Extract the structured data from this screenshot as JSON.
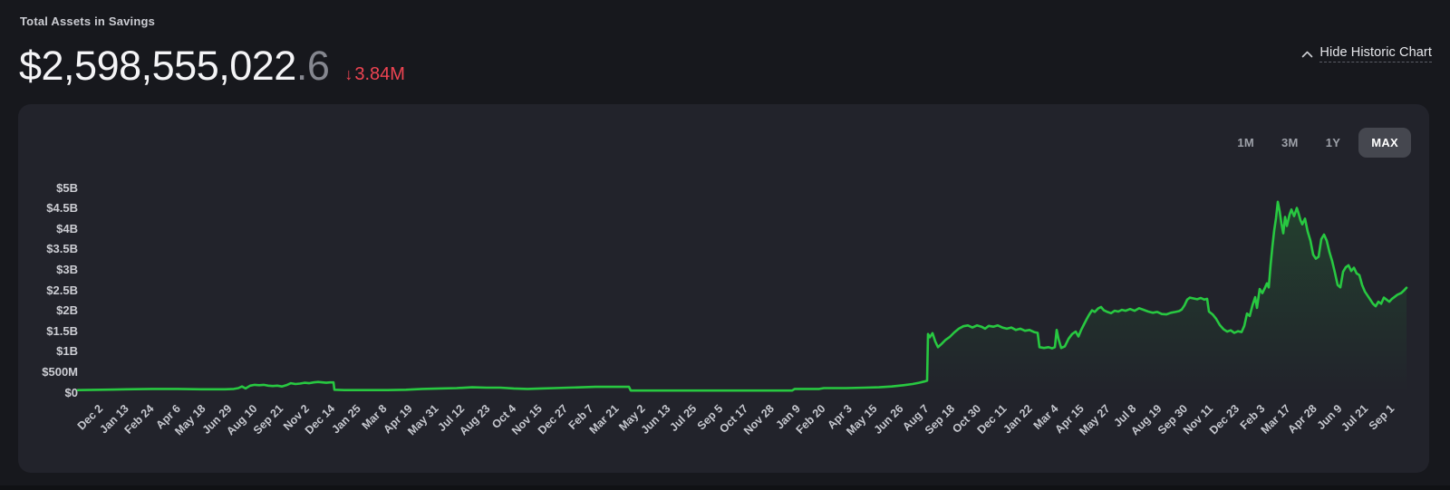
{
  "header": {
    "title": "Total Assets in Savings",
    "amount_main": "$2,598,555,022",
    "amount_decimal": ".6",
    "change": {
      "arrow": "↓",
      "value": "3.84M",
      "color": "#ef4452"
    },
    "toggle_link": {
      "label": "Hide Historic Chart",
      "icon": "chevron-up"
    }
  },
  "chart_panel": {
    "range_buttons": [
      {
        "label": "1M",
        "active": false
      },
      {
        "label": "3M",
        "active": false
      },
      {
        "label": "1Y",
        "active": false
      },
      {
        "label": "MAX",
        "active": true
      }
    ]
  },
  "chart_data": {
    "type": "line",
    "unit": "USD",
    "grid": false,
    "legend": false,
    "ylim": [
      0,
      5.5
    ],
    "y_axis": [
      {
        "label": "$5B",
        "value": 5
      },
      {
        "label": "$4.5B",
        "value": 4.5
      },
      {
        "label": "$4B",
        "value": 4
      },
      {
        "label": "$3.5B",
        "value": 3.5
      },
      {
        "label": "$3B",
        "value": 3
      },
      {
        "label": "$2.5B",
        "value": 2.5
      },
      {
        "label": "$2B",
        "value": 2
      },
      {
        "label": "$1.5B",
        "value": 1.5
      },
      {
        "label": "$1B",
        "value": 1
      },
      {
        "label": "$500M",
        "value": 0.5
      },
      {
        "label": "$0",
        "value": 0
      }
    ],
    "x_labels": [
      "Dec 2",
      "Jan 13",
      "Feb 24",
      "Apr 6",
      "May 18",
      "Jun 29",
      "Aug 10",
      "Sep 21",
      "Nov 2",
      "Dec 14",
      "Jan 25",
      "Mar 8",
      "Apr 19",
      "May 31",
      "Jul 12",
      "Aug 23",
      "Oct 4",
      "Nov 15",
      "Dec 27",
      "Feb 7",
      "Mar 21",
      "May 2",
      "Jun 13",
      "Jul 25",
      "Sep 5",
      "Oct 17",
      "Nov 28",
      "Jan 9",
      "Feb 20",
      "Apr 3",
      "May 15",
      "Jun 26",
      "Aug 7",
      "Sep 18",
      "Oct 30",
      "Dec 11",
      "Jan 22",
      "Mar 4",
      "Apr 15",
      "May 27",
      "Jul 8",
      "Aug 19",
      "Sep 30",
      "Nov 11",
      "Dec 23",
      "Feb 3",
      "Mar 17",
      "Apr 28",
      "Jun 9",
      "Jul 21",
      "Sep 1"
    ],
    "series": [
      {
        "name": "total-assets-historic",
        "color": "#28c841",
        "value_unit": "billions USD",
        "points": [
          [
            86,
            0.05
          ],
          [
            112,
            0.06
          ],
          [
            140,
            0.07
          ],
          [
            168,
            0.08
          ],
          [
            196,
            0.08
          ],
          [
            222,
            0.07
          ],
          [
            248,
            0.07
          ],
          [
            258,
            0.08
          ],
          [
            263,
            0.1
          ],
          [
            267,
            0.14
          ],
          [
            271,
            0.09
          ],
          [
            276,
            0.16
          ],
          [
            281,
            0.18
          ],
          [
            286,
            0.17
          ],
          [
            291,
            0.18
          ],
          [
            296,
            0.16
          ],
          [
            301,
            0.15
          ],
          [
            306,
            0.16
          ],
          [
            311,
            0.14
          ],
          [
            316,
            0.17
          ],
          [
            321,
            0.22
          ],
          [
            326,
            0.2
          ],
          [
            331,
            0.21
          ],
          [
            336,
            0.23
          ],
          [
            341,
            0.22
          ],
          [
            346,
            0.24
          ],
          [
            351,
            0.25
          ],
          [
            356,
            0.24
          ],
          [
            360,
            0.23
          ],
          [
            364,
            0.24
          ],
          [
            368,
            0.24
          ],
          [
            369,
            0.06
          ],
          [
            380,
            0.05
          ],
          [
            405,
            0.05
          ],
          [
            428,
            0.05
          ],
          [
            448,
            0.06
          ],
          [
            466,
            0.08
          ],
          [
            485,
            0.09
          ],
          [
            504,
            0.1
          ],
          [
            521,
            0.12
          ],
          [
            537,
            0.11
          ],
          [
            552,
            0.11
          ],
          [
            567,
            0.09
          ],
          [
            582,
            0.08
          ],
          [
            597,
            0.09
          ],
          [
            612,
            0.1
          ],
          [
            627,
            0.11
          ],
          [
            642,
            0.12
          ],
          [
            657,
            0.13
          ],
          [
            672,
            0.13
          ],
          [
            686,
            0.13
          ],
          [
            694,
            0.13
          ],
          [
            696,
            0.04
          ],
          [
            720,
            0.04
          ],
          [
            752,
            0.04
          ],
          [
            784,
            0.04
          ],
          [
            816,
            0.04
          ],
          [
            848,
            0.04
          ],
          [
            874,
            0.04
          ],
          [
            877,
            0.08
          ],
          [
            904,
            0.08
          ],
          [
            909,
            0.1
          ],
          [
            934,
            0.1
          ],
          [
            954,
            0.11
          ],
          [
            970,
            0.12
          ],
          [
            984,
            0.14
          ],
          [
            997,
            0.17
          ],
          [
            1007,
            0.2
          ],
          [
            1014,
            0.23
          ],
          [
            1020,
            0.26
          ],
          [
            1023,
            0.28
          ],
          [
            1024,
            1.42
          ],
          [
            1026,
            1.34
          ],
          [
            1029,
            1.44
          ],
          [
            1032,
            1.24
          ],
          [
            1035,
            1.1
          ],
          [
            1039,
            1.18
          ],
          [
            1043,
            1.27
          ],
          [
            1048,
            1.35
          ],
          [
            1053,
            1.46
          ],
          [
            1058,
            1.55
          ],
          [
            1063,
            1.61
          ],
          [
            1068,
            1.63
          ],
          [
            1073,
            1.58
          ],
          [
            1078,
            1.63
          ],
          [
            1083,
            1.6
          ],
          [
            1087,
            1.55
          ],
          [
            1091,
            1.62
          ],
          [
            1096,
            1.6
          ],
          [
            1101,
            1.63
          ],
          [
            1106,
            1.58
          ],
          [
            1111,
            1.55
          ],
          [
            1116,
            1.58
          ],
          [
            1121,
            1.52
          ],
          [
            1126,
            1.55
          ],
          [
            1131,
            1.5
          ],
          [
            1136,
            1.52
          ],
          [
            1141,
            1.47
          ],
          [
            1145,
            1.45
          ],
          [
            1147,
            1.1
          ],
          [
            1152,
            1.08
          ],
          [
            1157,
            1.1
          ],
          [
            1161,
            1.07
          ],
          [
            1164,
            1.1
          ],
          [
            1166,
            1.52
          ],
          [
            1168,
            1.3
          ],
          [
            1171,
            1.08
          ],
          [
            1175,
            1.12
          ],
          [
            1179,
            1.3
          ],
          [
            1183,
            1.42
          ],
          [
            1187,
            1.48
          ],
          [
            1190,
            1.36
          ],
          [
            1193,
            1.52
          ],
          [
            1196,
            1.65
          ],
          [
            1199,
            1.78
          ],
          [
            1202,
            1.9
          ],
          [
            1205,
            2.0
          ],
          [
            1208,
            1.96
          ],
          [
            1212,
            2.05
          ],
          [
            1215,
            2.08
          ],
          [
            1218,
            2.0
          ],
          [
            1222,
            1.96
          ],
          [
            1226,
            1.93
          ],
          [
            1230,
            1.99
          ],
          [
            1234,
            1.97
          ],
          [
            1238,
            2.01
          ],
          [
            1242,
            1.99
          ],
          [
            1247,
            2.03
          ],
          [
            1252,
            1.99
          ],
          [
            1257,
            2.05
          ],
          [
            1262,
            2.01
          ],
          [
            1267,
            1.97
          ],
          [
            1272,
            1.94
          ],
          [
            1277,
            1.96
          ],
          [
            1282,
            1.91
          ],
          [
            1287,
            1.9
          ],
          [
            1292,
            1.94
          ],
          [
            1297,
            1.96
          ],
          [
            1301,
            1.98
          ],
          [
            1304,
            2.02
          ],
          [
            1307,
            2.12
          ],
          [
            1310,
            2.26
          ],
          [
            1313,
            2.31
          ],
          [
            1317,
            2.29
          ],
          [
            1321,
            2.27
          ],
          [
            1325,
            2.3
          ],
          [
            1329,
            2.26
          ],
          [
            1332,
            2.28
          ],
          [
            1334,
            1.97
          ],
          [
            1338,
            1.9
          ],
          [
            1342,
            1.79
          ],
          [
            1346,
            1.64
          ],
          [
            1350,
            1.54
          ],
          [
            1354,
            1.48
          ],
          [
            1358,
            1.51
          ],
          [
            1362,
            1.45
          ],
          [
            1366,
            1.49
          ],
          [
            1370,
            1.47
          ],
          [
            1373,
            1.62
          ],
          [
            1376,
            1.92
          ],
          [
            1379,
            1.86
          ],
          [
            1382,
            2.12
          ],
          [
            1385,
            2.32
          ],
          [
            1387,
            2.06
          ],
          [
            1390,
            2.52
          ],
          [
            1393,
            2.42
          ],
          [
            1396,
            2.56
          ],
          [
            1398,
            2.66
          ],
          [
            1400,
            2.56
          ],
          [
            1402,
            3.1
          ],
          [
            1404,
            3.55
          ],
          [
            1406,
            3.95
          ],
          [
            1408,
            4.25
          ],
          [
            1410,
            4.65
          ],
          [
            1412,
            4.42
          ],
          [
            1414,
            4.12
          ],
          [
            1416,
            3.88
          ],
          [
            1418,
            4.28
          ],
          [
            1420,
            4.06
          ],
          [
            1423,
            4.34
          ],
          [
            1425,
            4.46
          ],
          [
            1428,
            4.3
          ],
          [
            1431,
            4.5
          ],
          [
            1433,
            4.36
          ],
          [
            1435,
            4.2
          ],
          [
            1437,
            4.1
          ],
          [
            1440,
            4.24
          ],
          [
            1443,
            3.92
          ],
          [
            1446,
            3.7
          ],
          [
            1449,
            3.36
          ],
          [
            1452,
            3.26
          ],
          [
            1455,
            3.31
          ],
          [
            1458,
            3.74
          ],
          [
            1461,
            3.85
          ],
          [
            1464,
            3.7
          ],
          [
            1467,
            3.42
          ],
          [
            1470,
            3.2
          ],
          [
            1473,
            2.92
          ],
          [
            1476,
            2.62
          ],
          [
            1479,
            2.56
          ],
          [
            1482,
            2.94
          ],
          [
            1485,
            3.05
          ],
          [
            1488,
            3.1
          ],
          [
            1491,
            2.96
          ],
          [
            1494,
            3.04
          ],
          [
            1497,
            2.9
          ],
          [
            1500,
            2.86
          ],
          [
            1503,
            2.62
          ],
          [
            1506,
            2.46
          ],
          [
            1509,
            2.36
          ],
          [
            1512,
            2.26
          ],
          [
            1515,
            2.16
          ],
          [
            1518,
            2.1
          ],
          [
            1521,
            2.21
          ],
          [
            1524,
            2.16
          ],
          [
            1527,
            2.31
          ],
          [
            1530,
            2.26
          ],
          [
            1533,
            2.21
          ],
          [
            1536,
            2.28
          ],
          [
            1539,
            2.33
          ],
          [
            1542,
            2.38
          ],
          [
            1546,
            2.42
          ],
          [
            1549,
            2.48
          ],
          [
            1552,
            2.55
          ]
        ]
      }
    ]
  }
}
